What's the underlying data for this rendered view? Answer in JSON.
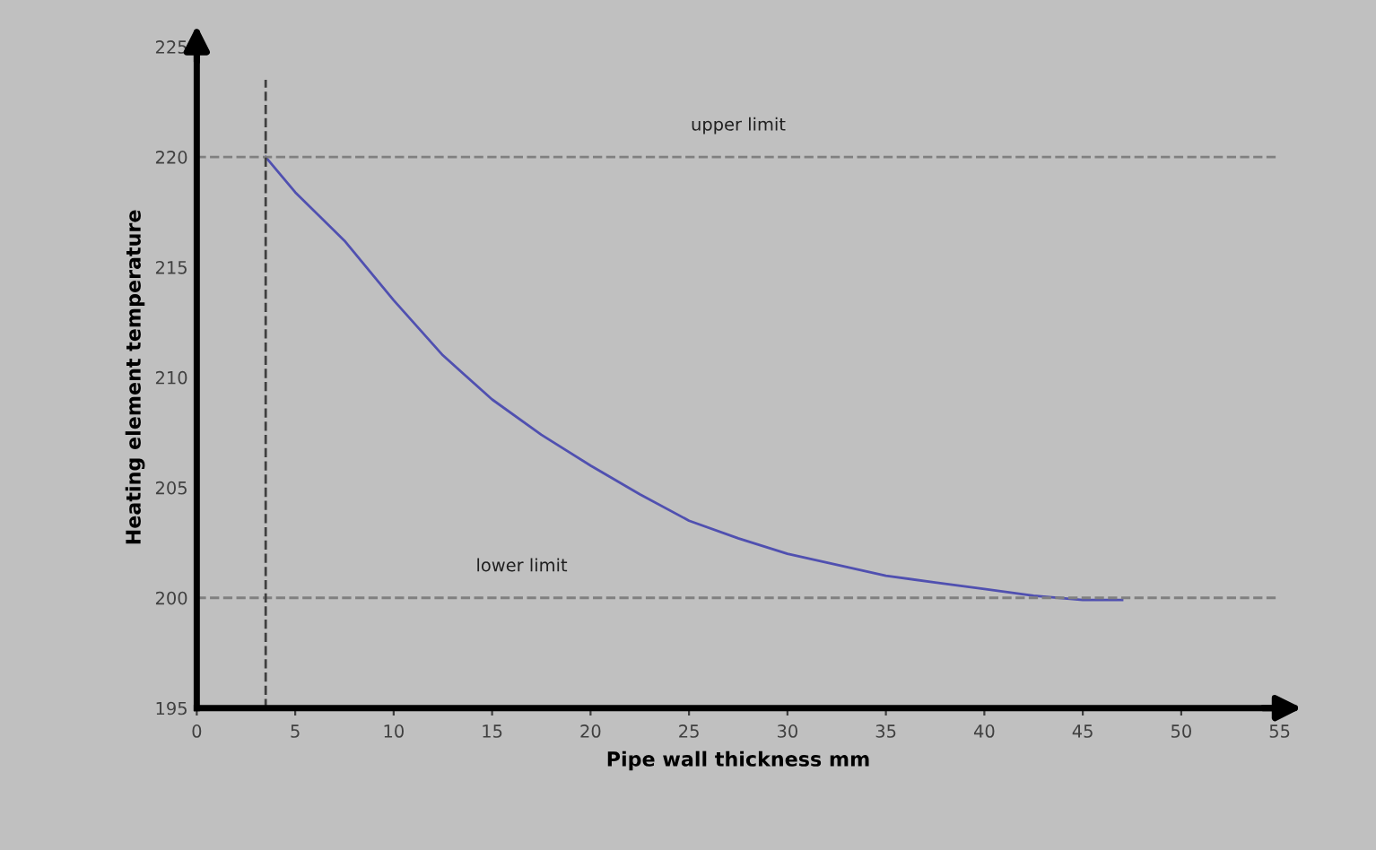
{
  "chart_data": {
    "type": "line",
    "xlabel": "Pipe wall thickness mm",
    "ylabel": "Heating element temperature",
    "x": [
      3.5,
      5,
      7.5,
      10,
      12.5,
      15,
      17.5,
      20,
      22.5,
      25,
      27.5,
      30,
      32.5,
      35,
      37.5,
      40,
      42.5,
      45,
      47
    ],
    "series": [
      {
        "color": "#5050b0",
        "values": [
          220,
          218.4,
          216.2,
          213.5,
          211,
          209,
          207.4,
          206,
          204.7,
          203.5,
          202.7,
          202,
          201.5,
          201,
          200.7,
          200.4,
          200.1,
          199.9,
          199.9
        ]
      }
    ],
    "xlim": [
      0,
      55
    ],
    "xticks": [
      0,
      5,
      10,
      15,
      20,
      25,
      30,
      35,
      40,
      45,
      50,
      55
    ],
    "ylim": [
      195,
      225
    ],
    "yticks": [
      195,
      200,
      205,
      210,
      215,
      220,
      225
    ],
    "ref_lines": [
      {
        "axis": "y",
        "value": 220,
        "label": "upper limit",
        "color": "#808080",
        "line_style": "dashed"
      },
      {
        "axis": "y",
        "value": 200,
        "label": "lower limit",
        "color": "#808080",
        "line_style": "dashed"
      },
      {
        "axis": "x",
        "value": 3.5,
        "label": null,
        "color": "#404040",
        "line_style": "dashed"
      }
    ],
    "grid": false,
    "legend": false,
    "marker": "none",
    "line_style": "solid"
  }
}
